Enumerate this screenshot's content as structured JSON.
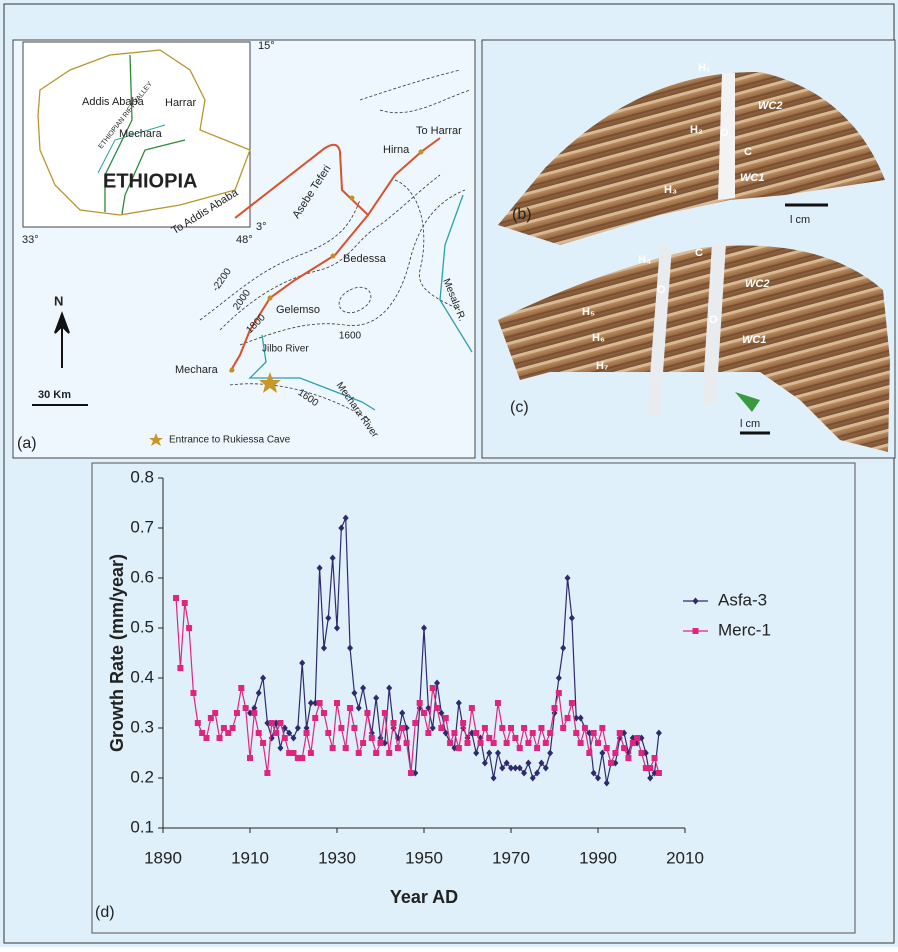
{
  "map": {
    "inset": {
      "degree_top": "15°",
      "degree_left": "33°",
      "degree_right": "3°",
      "degree_bottom": "48°",
      "capital": "Addis Ababa",
      "city": "Harrar",
      "town": "Mechara",
      "country": "ETHIOPIA",
      "rift": "ETHIOPIAN RIFT VALLEY"
    },
    "places": [
      "To Addis Ababa",
      "Asebe Teferi",
      "Hirna",
      "To Harrar",
      "Bedessa",
      "Gelemso",
      "Mechara"
    ],
    "contours": [
      "-2200",
      "2000",
      "1800",
      "1600",
      "1600"
    ],
    "rivers": [
      "Jilbo River",
      "Mechara River",
      "Mesala R."
    ],
    "north": "N",
    "scale": "30 Km",
    "panel": "(a)",
    "legend": "Entrance to Rukiessa Cave"
  },
  "photos": {
    "b": {
      "labels": [
        "H₁",
        "WC2",
        "H₂",
        "O",
        "C",
        "WC1",
        "H₃"
      ],
      "panel": "(b)",
      "scale": "l cm"
    },
    "c": {
      "labels": [
        "H₄",
        "C",
        "O",
        "O",
        "WC2",
        "H₅",
        "H₆",
        "WC1",
        "H₇"
      ],
      "panel": "(c)",
      "scale": "l cm"
    }
  },
  "chart_data": {
    "type": "line",
    "panel": "(d)",
    "x_label": "Year AD",
    "y_label": "Growth Rate (mm/year)",
    "x": [
      1893,
      1894,
      1895,
      1896,
      1897,
      1898,
      1899,
      1900,
      1901,
      1902,
      1903,
      1904,
      1905,
      1906,
      1907,
      1908,
      1909,
      1910,
      1911,
      1912,
      1913,
      1914,
      1915,
      1916,
      1917,
      1918,
      1919,
      1920,
      1921,
      1922,
      1923,
      1924,
      1925,
      1926,
      1927,
      1928,
      1929,
      1930,
      1931,
      1932,
      1933,
      1934,
      1935,
      1936,
      1937,
      1938,
      1939,
      1940,
      1941,
      1942,
      1943,
      1944,
      1945,
      1946,
      1947,
      1948,
      1949,
      1950,
      1951,
      1952,
      1953,
      1954,
      1955,
      1956,
      1957,
      1958,
      1959,
      1960,
      1961,
      1962,
      1963,
      1964,
      1965,
      1966,
      1967,
      1968,
      1969,
      1970,
      1971,
      1972,
      1973,
      1974,
      1975,
      1976,
      1977,
      1978,
      1979,
      1980,
      1981,
      1982,
      1983,
      1984,
      1985,
      1986,
      1987,
      1988,
      1989,
      1990,
      1991,
      1992,
      1993,
      1994,
      1995,
      1996,
      1997,
      1998,
      1999,
      2000,
      2001,
      2002,
      2003,
      2004
    ],
    "series": [
      {
        "name": "Asfa-3",
        "color": "#2e2a6e",
        "marker": "diamond",
        "values": [
          null,
          null,
          null,
          null,
          null,
          null,
          null,
          null,
          null,
          null,
          null,
          null,
          null,
          null,
          null,
          null,
          null,
          0.33,
          0.34,
          0.37,
          0.4,
          0.31,
          0.28,
          0.31,
          0.26,
          0.3,
          0.29,
          0.28,
          0.3,
          0.43,
          0.3,
          0.35,
          0.35,
          0.62,
          0.46,
          0.52,
          0.64,
          0.5,
          0.7,
          0.72,
          0.46,
          0.37,
          0.34,
          0.38,
          0.33,
          0.29,
          0.36,
          0.28,
          0.27,
          0.38,
          0.3,
          0.28,
          0.33,
          0.3,
          0.21,
          0.21,
          0.34,
          0.5,
          0.34,
          0.3,
          0.39,
          0.33,
          0.29,
          0.27,
          0.26,
          0.35,
          0.3,
          0.28,
          0.29,
          0.25,
          0.28,
          0.23,
          0.25,
          0.2,
          0.25,
          0.22,
          0.23,
          0.22,
          0.22,
          0.22,
          0.21,
          0.23,
          0.2,
          0.21,
          0.23,
          0.22,
          0.25,
          0.33,
          0.4,
          0.46,
          0.6,
          0.52,
          0.32,
          0.32,
          0.3,
          0.29,
          0.21,
          0.2,
          0.25,
          0.19,
          0.23,
          0.23,
          0.28,
          0.29,
          0.25,
          0.28,
          0.27,
          0.28,
          0.25,
          0.2,
          0.21,
          0.29
        ]
      },
      {
        "name": "Merc-1",
        "color": "#e0257f",
        "marker": "square",
        "values": [
          0.56,
          0.42,
          0.55,
          0.5,
          0.37,
          0.31,
          0.29,
          0.28,
          0.32,
          0.33,
          0.28,
          0.3,
          0.29,
          0.3,
          0.33,
          0.38,
          0.34,
          0.24,
          0.33,
          0.29,
          0.27,
          0.21,
          0.31,
          0.29,
          0.31,
          0.28,
          0.25,
          0.25,
          0.24,
          0.24,
          0.29,
          0.25,
          0.32,
          0.35,
          0.33,
          0.29,
          0.26,
          0.35,
          0.3,
          0.26,
          0.34,
          0.3,
          0.25,
          0.27,
          0.33,
          0.28,
          0.25,
          0.27,
          0.33,
          0.25,
          0.31,
          0.26,
          0.3,
          0.27,
          0.21,
          0.31,
          0.35,
          0.33,
          0.29,
          0.38,
          0.34,
          0.3,
          0.32,
          0.27,
          0.29,
          0.26,
          0.31,
          0.27,
          0.34,
          0.29,
          0.27,
          0.3,
          0.28,
          0.27,
          0.35,
          0.3,
          0.27,
          0.3,
          0.28,
          0.26,
          0.3,
          0.27,
          0.29,
          0.26,
          0.3,
          0.27,
          0.29,
          0.34,
          0.37,
          0.3,
          0.32,
          0.35,
          0.29,
          0.27,
          0.3,
          0.25,
          0.29,
          0.27,
          0.3,
          0.26,
          0.23,
          0.25,
          0.29,
          0.26,
          0.24,
          0.27,
          0.28,
          0.25,
          0.22,
          0.22,
          0.24,
          0.21
        ]
      }
    ],
    "xlim": [
      1890,
      2010
    ],
    "xticks": [
      1890,
      1910,
      1930,
      1950,
      1970,
      1990,
      2010
    ],
    "ylim": [
      0.1,
      0.8
    ],
    "yticks": [
      0.1,
      0.2,
      0.3,
      0.4,
      0.5,
      0.6,
      0.7,
      0.8
    ],
    "grid": false,
    "legend": "right"
  }
}
